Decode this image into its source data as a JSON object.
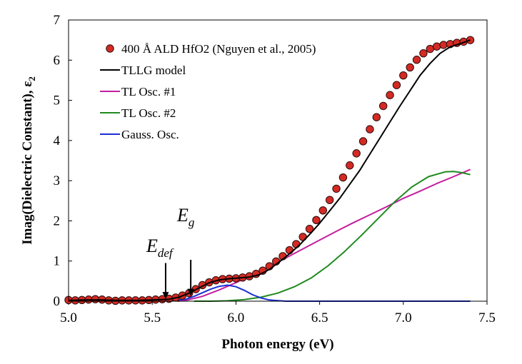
{
  "chart_data": {
    "type": "line",
    "title": "",
    "xlabel": "Photon energy (eV)",
    "ylabel_prefix": "Imag(Dielectric Constant), ε",
    "ylabel_subscript": "2",
    "xlim": [
      5.0,
      7.5
    ],
    "ylim": [
      0,
      7
    ],
    "xticks": [
      "5.0",
      "5.5",
      "6.0",
      "6.5",
      "7.0",
      "7.5"
    ],
    "xtick_values": [
      5.0,
      5.5,
      6.0,
      6.5,
      7.0,
      7.5
    ],
    "yticks": [
      "0",
      "1",
      "2",
      "3",
      "4",
      "5",
      "6",
      "7"
    ],
    "ytick_values": [
      0,
      1,
      2,
      3,
      4,
      5,
      6,
      7
    ],
    "grid": false,
    "legend_position": "top-left",
    "colors": {
      "data_marker_fill": "#d42a24",
      "data_marker_edge": "#2a0a0a",
      "tllg": "#000000",
      "tl1": "#c41e9e",
      "tl2": "#1f8a1f",
      "gauss": "#1c2fd6"
    },
    "series": [
      {
        "name": "400 Å ALD HfO2 (Nguyen et al., 2005)",
        "kind": "markers",
        "x": [
          5.0,
          5.04,
          5.08,
          5.12,
          5.16,
          5.2,
          5.24,
          5.28,
          5.32,
          5.36,
          5.4,
          5.44,
          5.48,
          5.52,
          5.56,
          5.6,
          5.64,
          5.68,
          5.72,
          5.76,
          5.8,
          5.84,
          5.88,
          5.92,
          5.96,
          6.0,
          6.04,
          6.08,
          6.12,
          6.16,
          6.2,
          6.24,
          6.28,
          6.32,
          6.36,
          6.4,
          6.44,
          6.48,
          6.52,
          6.56,
          6.6,
          6.64,
          6.68,
          6.72,
          6.76,
          6.8,
          6.84,
          6.88,
          6.92,
          6.96,
          7.0,
          7.04,
          7.08,
          7.12,
          7.16,
          7.2,
          7.24,
          7.28,
          7.32,
          7.36,
          7.4
        ],
        "y": [
          0.03,
          0.02,
          0.03,
          0.04,
          0.05,
          0.04,
          0.02,
          0.01,
          0.02,
          0.02,
          0.02,
          0.02,
          0.03,
          0.04,
          0.05,
          0.06,
          0.09,
          0.14,
          0.2,
          0.3,
          0.4,
          0.47,
          0.52,
          0.55,
          0.56,
          0.57,
          0.59,
          0.62,
          0.68,
          0.76,
          0.87,
          0.99,
          1.12,
          1.27,
          1.42,
          1.6,
          1.8,
          2.02,
          2.26,
          2.52,
          2.8,
          3.08,
          3.38,
          3.68,
          3.98,
          4.28,
          4.58,
          4.86,
          5.13,
          5.38,
          5.62,
          5.82,
          6.01,
          6.17,
          6.28,
          6.34,
          6.38,
          6.4,
          6.43,
          6.46,
          6.5
        ]
      },
      {
        "name": "TLLG model",
        "kind": "line",
        "x": [
          5.0,
          5.1,
          5.2,
          5.3,
          5.4,
          5.5,
          5.6,
          5.66,
          5.72,
          5.78,
          5.84,
          5.9,
          5.96,
          6.02,
          6.08,
          6.14,
          6.2,
          6.26,
          6.32,
          6.38,
          6.44,
          6.5,
          6.56,
          6.62,
          6.68,
          6.74,
          6.8,
          6.86,
          6.92,
          6.98,
          7.04,
          7.1,
          7.16,
          7.22,
          7.28,
          7.34,
          7.4
        ],
        "y": [
          0.02,
          0.03,
          0.03,
          0.02,
          0.02,
          0.03,
          0.05,
          0.1,
          0.2,
          0.33,
          0.46,
          0.53,
          0.56,
          0.58,
          0.6,
          0.66,
          0.79,
          0.98,
          1.18,
          1.4,
          1.66,
          1.94,
          2.25,
          2.56,
          2.91,
          3.26,
          3.66,
          4.06,
          4.46,
          4.86,
          5.24,
          5.62,
          5.92,
          6.17,
          6.33,
          6.41,
          6.5
        ]
      },
      {
        "name": "TL Osc. #1",
        "kind": "line",
        "x": [
          5.65,
          5.7,
          5.8,
          5.9,
          6.0,
          6.1,
          6.2,
          6.3,
          6.4,
          6.5,
          6.6,
          6.7,
          6.8,
          6.9,
          7.0,
          7.1,
          7.2,
          7.3,
          7.4
        ],
        "y": [
          0.0,
          0.02,
          0.12,
          0.28,
          0.46,
          0.66,
          0.86,
          1.08,
          1.3,
          1.52,
          1.74,
          1.95,
          2.15,
          2.35,
          2.56,
          2.74,
          2.93,
          3.1,
          3.28
        ]
      },
      {
        "name": "TL Osc. #2",
        "kind": "line",
        "x": [
          5.75,
          5.85,
          5.95,
          6.05,
          6.15,
          6.25,
          6.35,
          6.45,
          6.55,
          6.65,
          6.75,
          6.85,
          6.95,
          7.05,
          7.15,
          7.25,
          7.3,
          7.35,
          7.4
        ],
        "y": [
          0.0,
          0.0,
          0.01,
          0.04,
          0.1,
          0.2,
          0.36,
          0.58,
          0.88,
          1.24,
          1.64,
          2.06,
          2.48,
          2.84,
          3.1,
          3.22,
          3.23,
          3.2,
          3.15
        ]
      },
      {
        "name": "Gauss. Osc.",
        "kind": "line",
        "x": [
          5.0,
          5.5,
          5.6,
          5.7,
          5.75,
          5.8,
          5.85,
          5.9,
          5.95,
          6.0,
          6.05,
          6.1,
          6.15,
          6.2,
          6.3,
          6.5,
          7.0,
          7.4
        ],
        "y": [
          0.0,
          0.0,
          0.01,
          0.05,
          0.12,
          0.21,
          0.3,
          0.37,
          0.4,
          0.36,
          0.27,
          0.16,
          0.08,
          0.03,
          0.0,
          0.0,
          0.0,
          0.0
        ]
      }
    ],
    "annotations": [
      {
        "main": "E",
        "sub": "def",
        "arrow_x": 5.58,
        "arrow_y_top": 0.95,
        "arrow_y_bottom": 0.05
      },
      {
        "main": "E",
        "sub": "g",
        "arrow_x": 5.73,
        "arrow_y_top": 1.03,
        "arrow_y_bottom": 0.13
      }
    ]
  }
}
